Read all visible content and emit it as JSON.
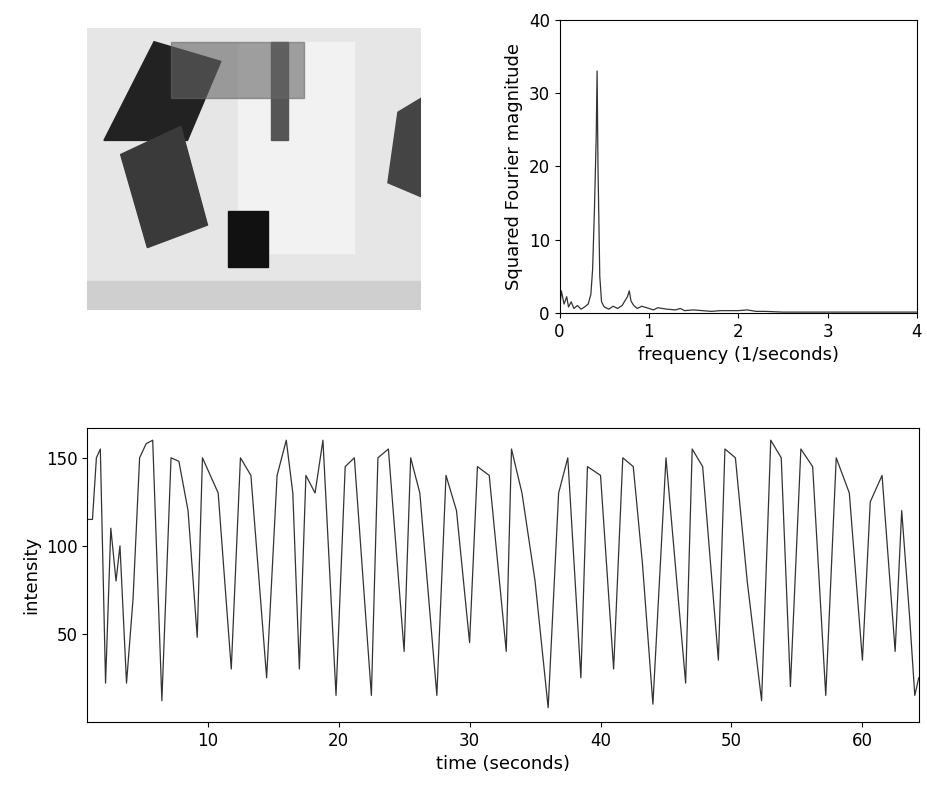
{
  "chart_data": [
    {
      "type": "line",
      "x_label": "frequency (1/seconds)",
      "y_label": "Squared Fourier magnitude",
      "x": [
        0,
        0.02,
        0.05,
        0.08,
        0.1,
        0.13,
        0.16,
        0.2,
        0.24,
        0.28,
        0.32,
        0.35,
        0.37,
        0.39,
        0.41,
        0.42,
        0.43,
        0.45,
        0.47,
        0.5,
        0.55,
        0.6,
        0.65,
        0.7,
        0.74,
        0.76,
        0.78,
        0.8,
        0.83,
        0.87,
        0.92,
        1.0,
        1.05,
        1.1,
        1.2,
        1.3,
        1.35,
        1.4,
        1.5,
        1.6,
        1.7,
        1.8,
        2.0,
        2.1,
        2.2,
        2.3,
        2.5,
        2.7,
        3.0,
        3.3,
        3.6,
        4.0
      ],
      "values": [
        0.5,
        3.0,
        1.2,
        2.2,
        0.8,
        1.5,
        0.6,
        1.0,
        0.5,
        0.8,
        1.2,
        2.5,
        6.0,
        14.0,
        24.0,
        33.0,
        20.0,
        5.0,
        1.5,
        0.8,
        0.5,
        0.9,
        0.6,
        1.0,
        1.8,
        2.2,
        3.0,
        1.6,
        1.0,
        0.6,
        0.9,
        0.6,
        0.4,
        0.7,
        0.5,
        0.4,
        0.6,
        0.3,
        0.4,
        0.3,
        0.2,
        0.3,
        0.3,
        0.4,
        0.2,
        0.2,
        0.1,
        0.1,
        0.1,
        0.1,
        0.1,
        0.1
      ],
      "xlim": [
        0,
        4
      ],
      "ylim": [
        0,
        40
      ],
      "xticks": [
        0,
        1,
        2,
        3,
        4
      ],
      "yticks": [
        0,
        10,
        20,
        30,
        40
      ],
      "color": "#333333"
    },
    {
      "type": "line",
      "x_label": "time (seconds)",
      "y_label": "intensity",
      "x": [
        0.8,
        1.2,
        1.5,
        1.8,
        2.2,
        2.6,
        3.0,
        3.3,
        3.8,
        4.3,
        4.8,
        5.3,
        5.8,
        6.5,
        7.2,
        7.8,
        8.5,
        9.2,
        9.6,
        10.2,
        10.8,
        11.8,
        12.5,
        13.3,
        14.5,
        15.3,
        16.0,
        16.5,
        17.0,
        17.5,
        18.2,
        18.8,
        19.8,
        20.5,
        21.2,
        22.5,
        23.0,
        23.8,
        25.0,
        25.5,
        26.2,
        27.5,
        28.2,
        29.0,
        30.0,
        30.6,
        31.5,
        32.8,
        33.2,
        34.0,
        35.0,
        36.0,
        36.8,
        37.5,
        38.5,
        39.0,
        40.0,
        41.0,
        41.7,
        42.5,
        43.2,
        44.0,
        45.0,
        46.5,
        47.0,
        47.8,
        49.0,
        49.5,
        50.3,
        51.2,
        52.3,
        53.0,
        53.8,
        54.5,
        55.3,
        56.2,
        57.2,
        58.0,
        59.0,
        60.0,
        60.6,
        61.5,
        62.5,
        63.0,
        63.6,
        64.0,
        64.3
      ],
      "values": [
        115,
        115,
        150,
        155,
        22,
        110,
        80,
        100,
        22,
        70,
        150,
        158,
        160,
        12,
        150,
        148,
        120,
        48,
        150,
        140,
        130,
        30,
        150,
        140,
        25,
        140,
        160,
        130,
        30,
        140,
        130,
        160,
        15,
        145,
        150,
        15,
        150,
        155,
        40,
        150,
        130,
        15,
        140,
        120,
        45,
        145,
        140,
        40,
        155,
        130,
        80,
        8,
        130,
        150,
        25,
        145,
        140,
        30,
        150,
        145,
        90,
        10,
        150,
        22,
        155,
        145,
        35,
        155,
        150,
        80,
        12,
        160,
        150,
        20,
        155,
        145,
        15,
        150,
        130,
        35,
        125,
        140,
        40,
        120,
        60,
        15,
        25
      ],
      "xlim": [
        0.8,
        64.3
      ],
      "ylim": [
        0,
        167
      ],
      "xticks": [
        10,
        20,
        30,
        40,
        50,
        60
      ],
      "yticks": [
        50,
        100,
        150
      ],
      "color": "#333333"
    }
  ]
}
